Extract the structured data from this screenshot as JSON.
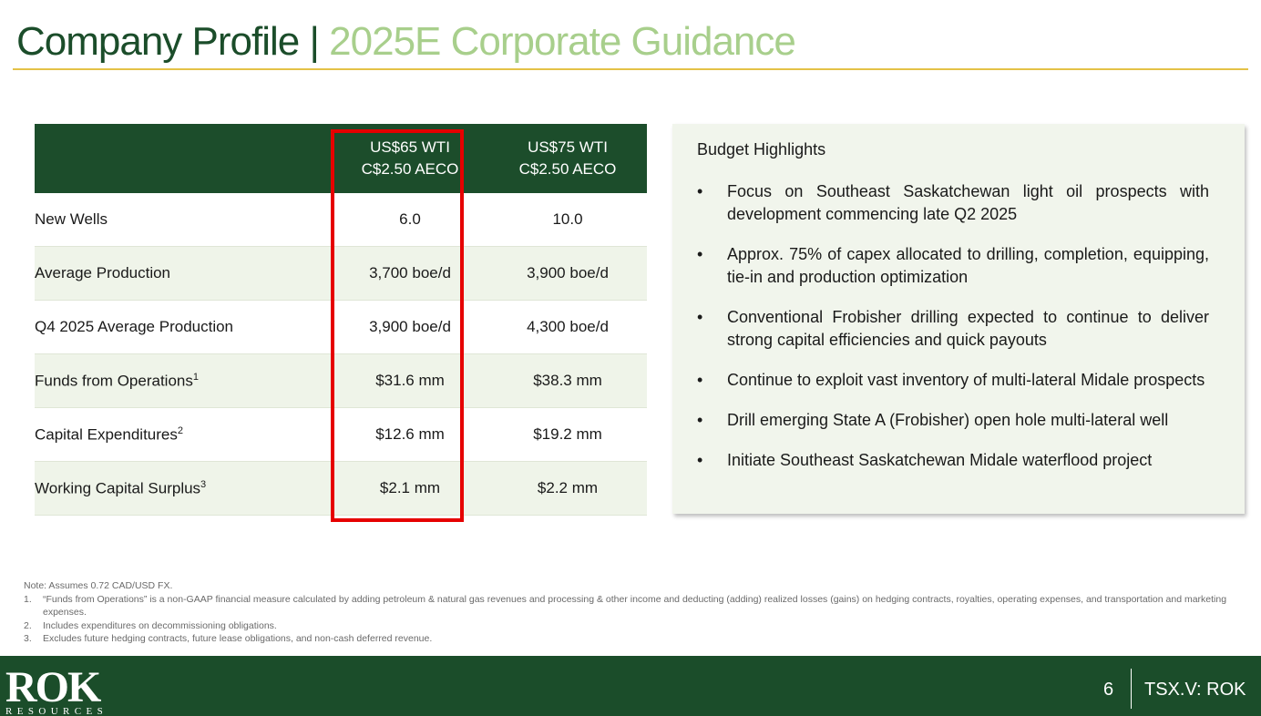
{
  "header": {
    "title_main": "Company Profile",
    "title_sep": "|",
    "title_sub": "2025E Corporate Guidance"
  },
  "table": {
    "columns": [
      {
        "line1": "US$65 WTI",
        "line2": "C$2.50 AECO"
      },
      {
        "line1": "US$75 WTI",
        "line2": "C$2.50 AECO"
      }
    ],
    "rows": [
      {
        "label": "New Wells",
        "sup": "",
        "v1": "6.0",
        "v2": "10.0"
      },
      {
        "label": "Average Production",
        "sup": "",
        "v1": "3,700 boe/d",
        "v2": "3,900 boe/d"
      },
      {
        "label": "Q4 2025 Average Production",
        "sup": "",
        "v1": "3,900 boe/d",
        "v2": "4,300 boe/d"
      },
      {
        "label": "Funds from Operations",
        "sup": "1",
        "v1": "$31.6 mm",
        "v2": "$38.3 mm"
      },
      {
        "label": "Capital Expenditures",
        "sup": "2",
        "v1": "$12.6 mm",
        "v2": "$19.2 mm"
      },
      {
        "label": "Working Capital Surplus",
        "sup": "3",
        "v1": "$2.1 mm",
        "v2": "$2.2 mm"
      }
    ]
  },
  "highlights": {
    "title": "Budget Highlights",
    "bullet": "•",
    "items": [
      "Focus on Southeast Saskatchewan light oil prospects with development commencing late Q2 2025",
      "Approx. 75% of capex allocated to drilling, completion, equipping, tie-in and production optimization",
      "Conventional Frobisher drilling expected to continue to deliver strong capital efficiencies and quick payouts",
      "Continue to exploit vast inventory of multi-lateral Midale prospects",
      "Drill emerging State A (Frobisher) open hole multi-lateral well",
      "Initiate Southeast Saskatchewan Midale waterflood project"
    ]
  },
  "notes": {
    "lead": "Note: Assumes 0.72 CAD/USD FX.",
    "items": [
      {
        "num": "1.",
        "text": "“Funds from Operations” is a non-GAAP financial measure calculated by adding petroleum & natural gas revenues and processing & other income and deducting (adding) realized losses (gains) on hedging contracts, royalties, operating expenses, and transportation and marketing expenses."
      },
      {
        "num": "2.",
        "text": "Includes expenditures on decommissioning obligations."
      },
      {
        "num": "3.",
        "text": "Excludes future hedging contracts, future lease obligations, and non-cash deferred revenue."
      }
    ]
  },
  "footer": {
    "logo_text": "ROK",
    "logo_sub": "RESOURCES",
    "page_number": "6",
    "ticker": "TSX.V: ROK"
  },
  "colors": {
    "dark_green": "#1b4d2a",
    "light_green": "#a8cf8c",
    "gold_rule": "#e4c247",
    "highlight_red": "#e60000"
  }
}
